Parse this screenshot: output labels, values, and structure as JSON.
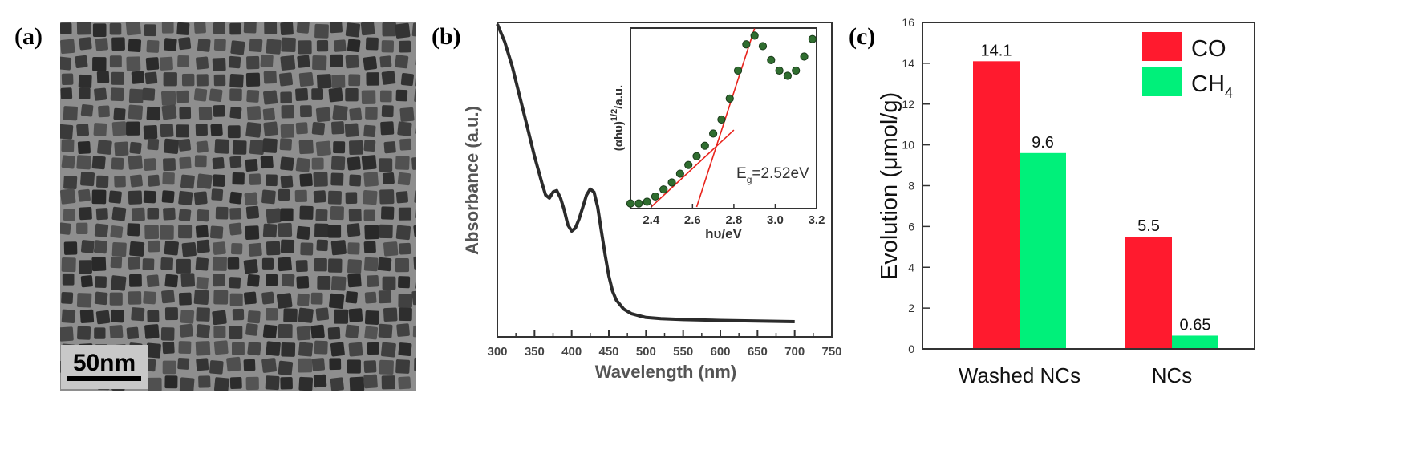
{
  "figure": {
    "panel_a_label": "(a)",
    "panel_b_label": "(b)",
    "panel_c_label": "(c)"
  },
  "panel_a": {
    "scale_bar_label": "50nm"
  },
  "panel_b": {
    "xlabel": "Wavelength (nm)",
    "ylabel": "Absorbance (a.u.)",
    "x_ticks": [
      300,
      350,
      400,
      450,
      500,
      550,
      600,
      650,
      700,
      750
    ],
    "inset": {
      "xlabel": "hυ/eV",
      "ylabel": "(αhυ)",
      "ylabel_sup": "1/2",
      "ylabel_suffix": "/a.u.",
      "x_ticks": [
        "2.4",
        "2.6",
        "2.8",
        "3.0",
        "3.2"
      ],
      "annotation_main": "E",
      "annotation_sub": "g",
      "annotation_value": "=2.52eV"
    }
  },
  "chart_data": [
    {
      "type": "line",
      "panel": "b",
      "title": "",
      "xlabel": "Wavelength (nm)",
      "ylabel": "Absorbance (a.u.)",
      "xlim": [
        300,
        750
      ],
      "ylim": [
        0,
        1
      ],
      "series": [
        {
          "name": "absorbance",
          "x": [
            300,
            310,
            320,
            330,
            340,
            350,
            360,
            365,
            370,
            375,
            380,
            385,
            390,
            395,
            400,
            405,
            410,
            415,
            420,
            425,
            430,
            435,
            440,
            445,
            450,
            455,
            460,
            470,
            480,
            490,
            500,
            520,
            550,
            600,
            650,
            700
          ],
          "y": [
            1.0,
            0.94,
            0.86,
            0.76,
            0.66,
            0.56,
            0.47,
            0.43,
            0.42,
            0.44,
            0.445,
            0.42,
            0.38,
            0.33,
            0.31,
            0.32,
            0.35,
            0.39,
            0.43,
            0.45,
            0.44,
            0.39,
            0.31,
            0.23,
            0.16,
            0.11,
            0.08,
            0.05,
            0.035,
            0.028,
            0.022,
            0.018,
            0.015,
            0.012,
            0.01,
            0.008
          ]
        }
      ]
    },
    {
      "type": "scatter",
      "panel": "b-inset",
      "title": "",
      "xlabel": "hυ/eV",
      "ylabel": "(αhυ)^1/2/a.u.",
      "xlim": [
        2.3,
        3.2
      ],
      "ylim": [
        0,
        1
      ],
      "annotation": "Eg=2.52eV",
      "series": [
        {
          "name": "data",
          "x": [
            2.3,
            2.34,
            2.38,
            2.42,
            2.46,
            2.5,
            2.54,
            2.58,
            2.62,
            2.66,
            2.7,
            2.74,
            2.78,
            2.82,
            2.86,
            2.9,
            2.94,
            2.98,
            3.02,
            3.06,
            3.1,
            3.14,
            3.18
          ],
          "y": [
            0.02,
            0.02,
            0.03,
            0.06,
            0.1,
            0.14,
            0.19,
            0.24,
            0.29,
            0.35,
            0.42,
            0.5,
            0.62,
            0.78,
            0.93,
            0.98,
            0.92,
            0.84,
            0.78,
            0.75,
            0.78,
            0.86,
            0.96
          ]
        },
        {
          "name": "tangent-1",
          "x": [
            2.62,
            2.9
          ],
          "y": [
            0.0,
            1.02
          ]
        },
        {
          "name": "tangent-2",
          "x": [
            2.4,
            2.8
          ],
          "y": [
            0.0,
            0.44
          ]
        }
      ]
    },
    {
      "type": "bar",
      "panel": "c",
      "title": "",
      "xlabel": "",
      "ylabel": "Evolution (μmol/g)",
      "ylim": [
        0,
        16
      ],
      "y_ticks": [
        0,
        2,
        4,
        6,
        8,
        10,
        12,
        14,
        16
      ],
      "categories": [
        "Washed NCs",
        "NCs"
      ],
      "series": [
        {
          "name": "CO",
          "values": [
            14.1,
            5.5
          ],
          "labels": [
            "14.1",
            "5.5"
          ],
          "color": "#ff1a2e"
        },
        {
          "name": "CH4",
          "legend_main": "CH",
          "legend_sub": "4",
          "values": [
            9.6,
            0.65
          ],
          "labels": [
            "9.6",
            "0.65"
          ],
          "color": "#00f07a"
        }
      ],
      "legend_position": "top-right"
    }
  ]
}
